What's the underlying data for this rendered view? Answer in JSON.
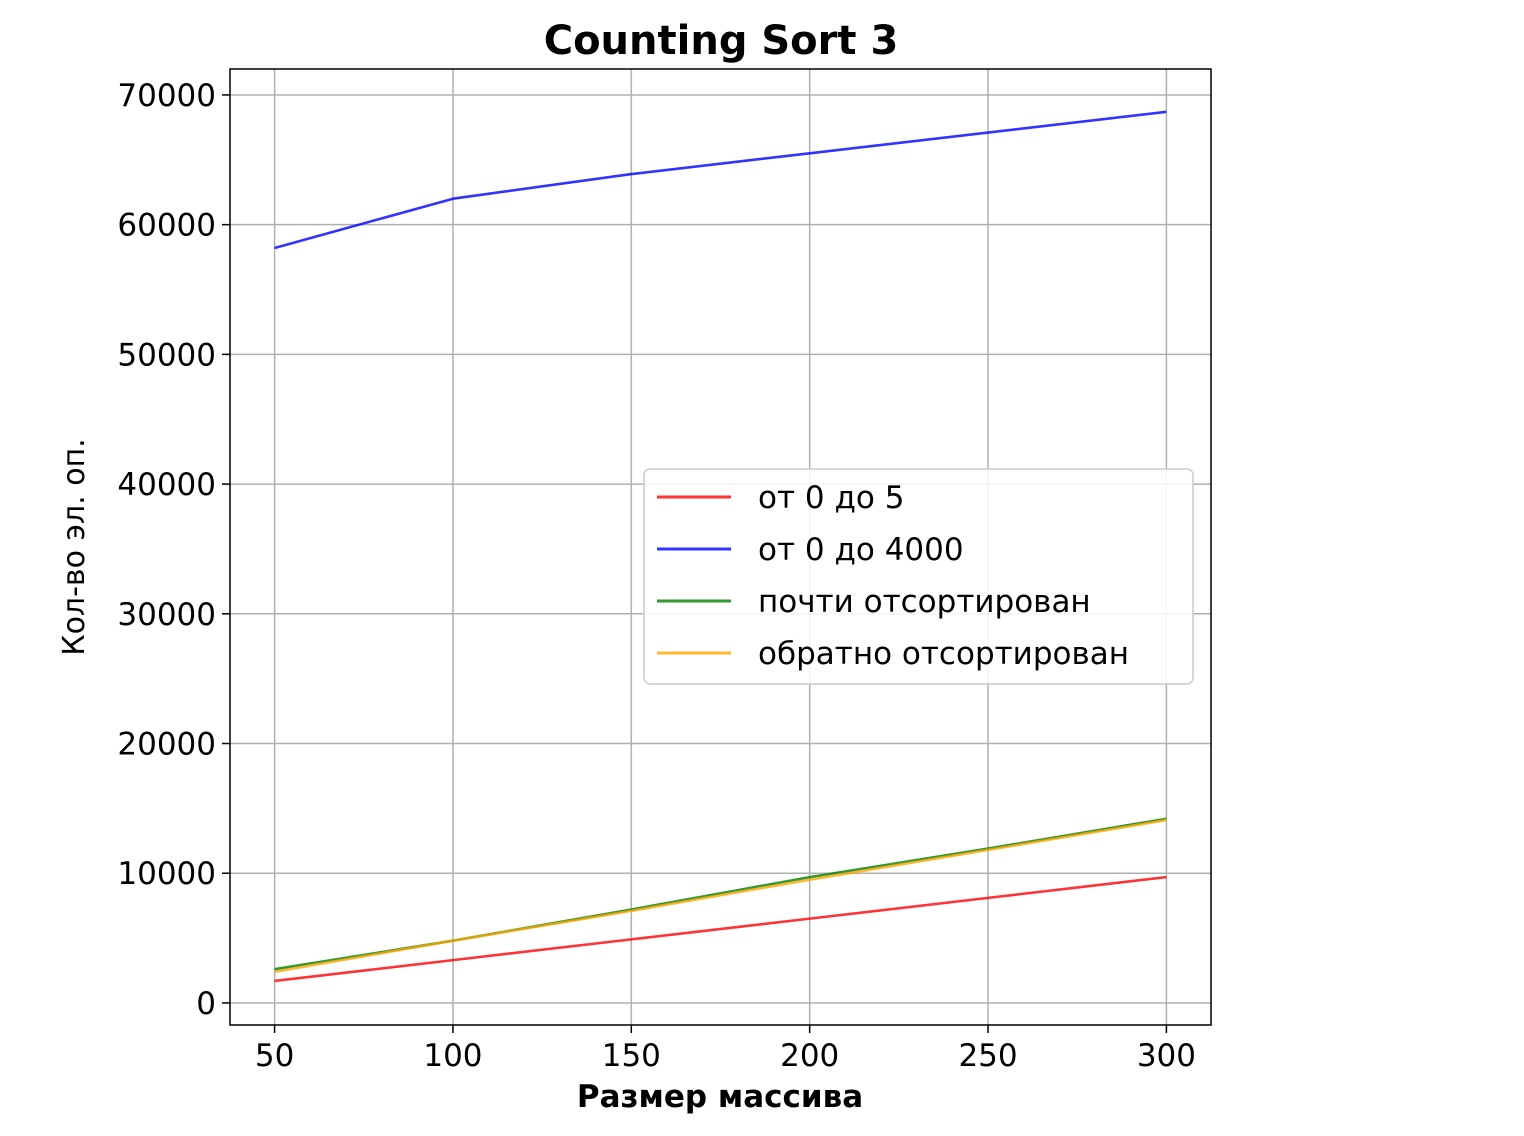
{
  "chart_data": {
    "type": "line",
    "title": "Counting Sort 3",
    "xlabel": "Размер массива",
    "ylabel": "Кол-во эл. оп.",
    "x": [
      50,
      100,
      150,
      200,
      250,
      300
    ],
    "xticks": [
      50,
      100,
      150,
      200,
      250,
      300
    ],
    "xtick_labels": [
      "50",
      "100",
      "150",
      "200",
      "250",
      "300"
    ],
    "yticks": [
      0,
      10000,
      20000,
      30000,
      40000,
      50000,
      60000,
      70000
    ],
    "ytick_labels": [
      "0",
      "10000",
      "20000",
      "30000",
      "40000",
      "50000",
      "60000",
      "70000"
    ],
    "xlim": [
      37.5,
      312.5
    ],
    "ylim": [
      -1700,
      72000
    ],
    "grid": true,
    "legend_position": "center-right",
    "series": [
      {
        "name": "от 0 до 5",
        "color": "#ff0000",
        "values": [
          1700,
          3300,
          4900,
          6500,
          8100,
          9700
        ]
      },
      {
        "name": "от 0 до 4000",
        "color": "#0000ff",
        "values": [
          58200,
          62000,
          63900,
          65500,
          67100,
          68700
        ]
      },
      {
        "name": "почти отсортирован",
        "color": "#008000",
        "values": [
          2600,
          4800,
          7200,
          9700,
          11900,
          14200
        ]
      },
      {
        "name": "обратно отсортирован",
        "color": "#ffa500",
        "values": [
          2400,
          4800,
          7100,
          9500,
          11800,
          14100
        ]
      }
    ]
  }
}
